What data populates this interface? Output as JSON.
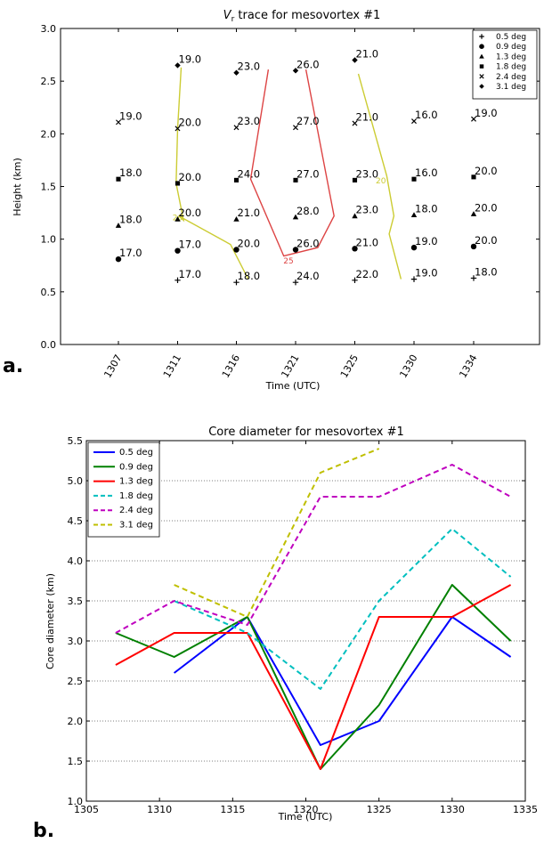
{
  "panel_labels": {
    "a": "a.",
    "b": "b."
  },
  "chart_data": [
    {
      "type": "scatter",
      "title": "V_r trace for mesovortex #1",
      "title_parts": {
        "v": "V",
        "sub": "r",
        "rest": " trace for mesovortex #1"
      },
      "xlabel": "Time (UTC)",
      "ylabel": "Height (km)",
      "ylim": [
        0.0,
        3.0
      ],
      "yticks": [
        "0.0",
        "0.5",
        "1.0",
        "1.5",
        "2.0",
        "2.5",
        "3.0"
      ],
      "x_categories": [
        "1307",
        "1311",
        "1316",
        "1321",
        "1325",
        "1330",
        "1334"
      ],
      "legend_placement": "top-right",
      "legend": [
        {
          "label": "0.5 deg",
          "marker": "plus"
        },
        {
          "label": "0.9 deg",
          "marker": "circle"
        },
        {
          "label": "1.3 deg",
          "marker": "triangle"
        },
        {
          "label": "1.8 deg",
          "marker": "square"
        },
        {
          "label": "2.4 deg",
          "marker": "x"
        },
        {
          "label": "3.1 deg",
          "marker": "diamond"
        }
      ],
      "points": [
        {
          "time": "1307",
          "height": 2.11,
          "marker": "x",
          "label": "19.0"
        },
        {
          "time": "1307",
          "height": 1.57,
          "marker": "square",
          "label": "18.0"
        },
        {
          "time": "1307",
          "height": 1.13,
          "marker": "triangle",
          "label": "18.0"
        },
        {
          "time": "1307",
          "height": 0.81,
          "marker": "circle",
          "label": "17.0"
        },
        {
          "time": "1311",
          "height": 2.65,
          "marker": "diamond",
          "label": "19.0"
        },
        {
          "time": "1311",
          "height": 2.05,
          "marker": "x",
          "label": "20.0"
        },
        {
          "time": "1311",
          "height": 1.53,
          "marker": "square",
          "label": "20.0"
        },
        {
          "time": "1311",
          "height": 1.19,
          "marker": "triangle",
          "label": "20.0"
        },
        {
          "time": "1311",
          "height": 0.89,
          "marker": "circle",
          "label": "17.0"
        },
        {
          "time": "1311",
          "height": 0.61,
          "marker": "plus",
          "label": "17.0"
        },
        {
          "time": "1316",
          "height": 2.58,
          "marker": "diamond",
          "label": "23.0"
        },
        {
          "time": "1316",
          "height": 2.06,
          "marker": "x",
          "label": "23.0"
        },
        {
          "time": "1316",
          "height": 1.56,
          "marker": "square",
          "label": "24.0"
        },
        {
          "time": "1316",
          "height": 1.19,
          "marker": "triangle",
          "label": "21.0"
        },
        {
          "time": "1316",
          "height": 0.9,
          "marker": "circle",
          "label": "20.0"
        },
        {
          "time": "1316",
          "height": 0.59,
          "marker": "plus",
          "label": "18.0"
        },
        {
          "time": "1321",
          "height": 2.6,
          "marker": "diamond",
          "label": "26.0"
        },
        {
          "time": "1321",
          "height": 2.06,
          "marker": "x",
          "label": "27.0"
        },
        {
          "time": "1321",
          "height": 1.56,
          "marker": "square",
          "label": "27.0"
        },
        {
          "time": "1321",
          "height": 1.21,
          "marker": "triangle",
          "label": "28.0"
        },
        {
          "time": "1321",
          "height": 0.9,
          "marker": "circle",
          "label": "26.0"
        },
        {
          "time": "1321",
          "height": 0.59,
          "marker": "plus",
          "label": "24.0"
        },
        {
          "time": "1325",
          "height": 2.7,
          "marker": "diamond",
          "label": "21.0"
        },
        {
          "time": "1325",
          "height": 2.1,
          "marker": "x",
          "label": "21.0"
        },
        {
          "time": "1325",
          "height": 1.56,
          "marker": "square",
          "label": "23.0"
        },
        {
          "time": "1325",
          "height": 1.22,
          "marker": "triangle",
          "label": "23.0"
        },
        {
          "time": "1325",
          "height": 0.91,
          "marker": "circle",
          "label": "21.0"
        },
        {
          "time": "1325",
          "height": 0.61,
          "marker": "plus",
          "label": "22.0"
        },
        {
          "time": "1330",
          "height": 2.12,
          "marker": "x",
          "label": "16.0"
        },
        {
          "time": "1330",
          "height": 1.57,
          "marker": "square",
          "label": "16.0"
        },
        {
          "time": "1330",
          "height": 1.23,
          "marker": "triangle",
          "label": "18.0"
        },
        {
          "time": "1330",
          "height": 0.92,
          "marker": "circle",
          "label": "19.0"
        },
        {
          "time": "1330",
          "height": 0.62,
          "marker": "plus",
          "label": "19.0"
        },
        {
          "time": "1334",
          "height": 2.14,
          "marker": "x",
          "label": "19.0"
        },
        {
          "time": "1334",
          "height": 1.59,
          "marker": "square",
          "label": "20.0"
        },
        {
          "time": "1334",
          "height": 1.24,
          "marker": "triangle",
          "label": "20.0"
        },
        {
          "time": "1334",
          "height": 0.93,
          "marker": "circle",
          "label": "20.0"
        },
        {
          "time": "1334",
          "height": 0.63,
          "marker": "plus",
          "label": "18.0"
        }
      ],
      "contours": [
        {
          "label": "20",
          "color": "#cccc33",
          "points": [
            [
              1311.3,
              2.63
            ],
            [
              1311.0,
              2.05
            ],
            [
              1310.9,
              1.53
            ],
            [
              1311.5,
              1.18
            ],
            [
              1311.1,
              1.22
            ],
            [
              1315.5,
              0.95
            ],
            [
              1317.0,
              0.62
            ]
          ]
        },
        {
          "label": "25",
          "color": "#dd4444",
          "points": [
            [
              1318.7,
              2.61
            ],
            [
              1317.2,
              1.57
            ],
            [
              1320.0,
              0.84
            ],
            [
              1322.5,
              0.92
            ],
            [
              1323.6,
              1.22
            ],
            [
              1321.7,
              2.61
            ]
          ]
        },
        {
          "label": "20",
          "color": "#cccc33",
          "points": [
            [
              1325.3,
              2.57
            ],
            [
              1327.7,
              1.6
            ],
            [
              1328.3,
              1.22
            ],
            [
              1327.9,
              1.05
            ],
            [
              1328.9,
              0.62
            ]
          ]
        }
      ],
      "contour_label_positions": [
        {
          "text": "20",
          "x": 1311.0,
          "y": 1.18
        },
        {
          "text": "25",
          "x": 1320.4,
          "y": 0.77
        },
        {
          "text": "20",
          "x": 1327.2,
          "y": 1.53
        }
      ]
    },
    {
      "type": "line",
      "title": "Core diameter for mesovortex #1",
      "xlabel": "Time (UTC)",
      "ylabel": "Core diameter (km)",
      "xlim": [
        1305,
        1335
      ],
      "ylim": [
        1.0,
        5.5
      ],
      "xticks": [
        "1305",
        "1310",
        "1315",
        "1320",
        "1325",
        "1330",
        "1335"
      ],
      "yticks": [
        "1.0",
        "1.5",
        "2.0",
        "2.5",
        "3.0",
        "3.5",
        "4.0",
        "4.5",
        "5.0",
        "5.5"
      ],
      "grid": "horizontal dotted",
      "legend_placement": "top-left",
      "series": [
        {
          "name": "0.5 deg",
          "color": "#0000ff",
          "style": "solid",
          "x": [
            1311,
            1316,
            1321,
            1325,
            1330,
            1334
          ],
          "y": [
            2.6,
            3.3,
            1.7,
            2.0,
            3.3,
            2.8
          ]
        },
        {
          "name": "0.9 deg",
          "color": "#008000",
          "style": "solid",
          "x": [
            1307,
            1311,
            1316,
            1321,
            1325,
            1330,
            1334
          ],
          "y": [
            3.1,
            2.8,
            3.3,
            1.4,
            2.2,
            3.7,
            3.0
          ]
        },
        {
          "name": "1.3 deg",
          "color": "#ff0000",
          "style": "solid",
          "x": [
            1307,
            1311,
            1316,
            1321,
            1325,
            1330,
            1334
          ],
          "y": [
            2.7,
            3.1,
            3.1,
            1.4,
            3.3,
            3.3,
            3.7
          ]
        },
        {
          "name": "1.8 deg",
          "color": "#00bfbf",
          "style": "dashed",
          "x": [
            1311,
            1316,
            1321,
            1325,
            1330,
            1334
          ],
          "y": [
            3.5,
            3.1,
            2.4,
            3.5,
            4.4,
            3.8
          ]
        },
        {
          "name": "2.4 deg",
          "color": "#bf00bf",
          "style": "dashed",
          "x": [
            1307,
            1311,
            1316,
            1321,
            1325,
            1330,
            1334
          ],
          "y": [
            3.1,
            3.5,
            3.2,
            4.8,
            4.8,
            5.2,
            4.8
          ]
        },
        {
          "name": "3.1 deg",
          "color": "#bfbf00",
          "style": "dashed",
          "x": [
            1311,
            1316,
            1321,
            1325
          ],
          "y": [
            3.7,
            3.3,
            5.1,
            5.4
          ]
        }
      ]
    }
  ]
}
